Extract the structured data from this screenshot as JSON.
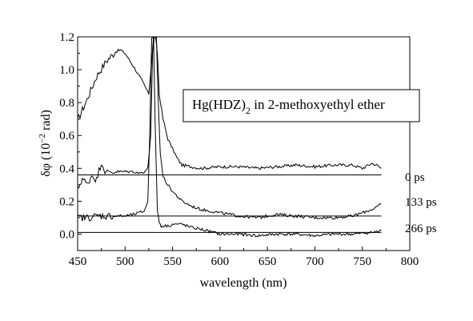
{
  "chart_data": {
    "type": "line",
    "xlabel": "wavelength (nm)",
    "ylabel_parts": {
      "main": "δφ (10",
      "exp": "−2",
      "unit": " rad)"
    },
    "xlim": [
      450,
      800
    ],
    "ylim": [
      -0.1,
      1.2
    ],
    "xticks": [
      450,
      500,
      550,
      600,
      650,
      700,
      750,
      800
    ],
    "yticks": [
      0.0,
      0.2,
      0.4,
      0.6,
      0.8,
      1.0,
      1.2
    ],
    "xtick_labels": [
      "450",
      "500",
      "550",
      "600",
      "650",
      "700",
      "750",
      "800"
    ],
    "ytick_labels": [
      "0.0",
      "0.2",
      "0.4",
      "0.6",
      "0.8",
      "1.0",
      "1.2"
    ],
    "legend": {
      "prefix": "Hg(HDZ)",
      "subscript": "2",
      "suffix": " in 2-methoxyethyl ether",
      "placement": "upper-right"
    },
    "series": [
      {
        "label": "0 ps",
        "baseline": 0.36,
        "baseline_x": [
          450,
          770
        ],
        "x": [
          450,
          460,
          470,
          480,
          490,
          495,
          500,
          510,
          520,
          525,
          528,
          530,
          532,
          534,
          536,
          540,
          545,
          550,
          555,
          560,
          570,
          580,
          600,
          620,
          640,
          660,
          680,
          700,
          720,
          740,
          750,
          760,
          765,
          770
        ],
        "y": [
          0.69,
          0.82,
          0.96,
          1.05,
          1.11,
          1.12,
          1.1,
          1.01,
          0.91,
          0.85,
          1.05,
          1.2,
          1.2,
          1.1,
          0.85,
          0.7,
          0.58,
          0.52,
          0.46,
          0.42,
          0.41,
          0.4,
          0.41,
          0.41,
          0.4,
          0.41,
          0.42,
          0.41,
          0.42,
          0.42,
          0.4,
          0.43,
          0.42,
          0.4
        ]
      },
      {
        "label": "133 ps",
        "baseline": 0.11,
        "baseline_x": [
          450,
          770
        ],
        "x": [
          450,
          455,
          460,
          465,
          470,
          475,
          480,
          485,
          490,
          500,
          510,
          515,
          520,
          524,
          527,
          529,
          531,
          533,
          535,
          537,
          540,
          545,
          550,
          560,
          570,
          580,
          600,
          620,
          640,
          660,
          680,
          700,
          720,
          740,
          750,
          760,
          770
        ],
        "y": [
          0.27,
          0.34,
          0.3,
          0.36,
          0.33,
          0.44,
          0.37,
          0.38,
          0.38,
          0.38,
          0.38,
          0.37,
          0.38,
          0.4,
          0.6,
          1.1,
          1.2,
          1.2,
          0.8,
          0.5,
          0.35,
          0.3,
          0.26,
          0.2,
          0.17,
          0.15,
          0.13,
          0.11,
          0.1,
          0.12,
          0.11,
          0.1,
          0.1,
          0.11,
          0.13,
          0.15,
          0.18
        ]
      },
      {
        "label": "266 ps",
        "baseline": 0.01,
        "baseline_x": [
          450,
          770
        ],
        "x": [
          450,
          460,
          470,
          480,
          490,
          500,
          510,
          520,
          524,
          526,
          528,
          530,
          532,
          534,
          536,
          538,
          540,
          545,
          550,
          560,
          570,
          580,
          600,
          620,
          640,
          660,
          680,
          700,
          720,
          740,
          760,
          770
        ],
        "y": [
          0.1,
          0.1,
          0.11,
          0.11,
          0.11,
          0.11,
          0.12,
          0.14,
          0.2,
          0.6,
          1.2,
          1.2,
          0.6,
          0.15,
          0.07,
          0.05,
          0.05,
          0.05,
          0.06,
          0.06,
          0.04,
          0.03,
          0.0,
          0.0,
          -0.01,
          0.0,
          0.0,
          -0.01,
          0.0,
          0.0,
          0.01,
          0.02
        ]
      }
    ]
  }
}
